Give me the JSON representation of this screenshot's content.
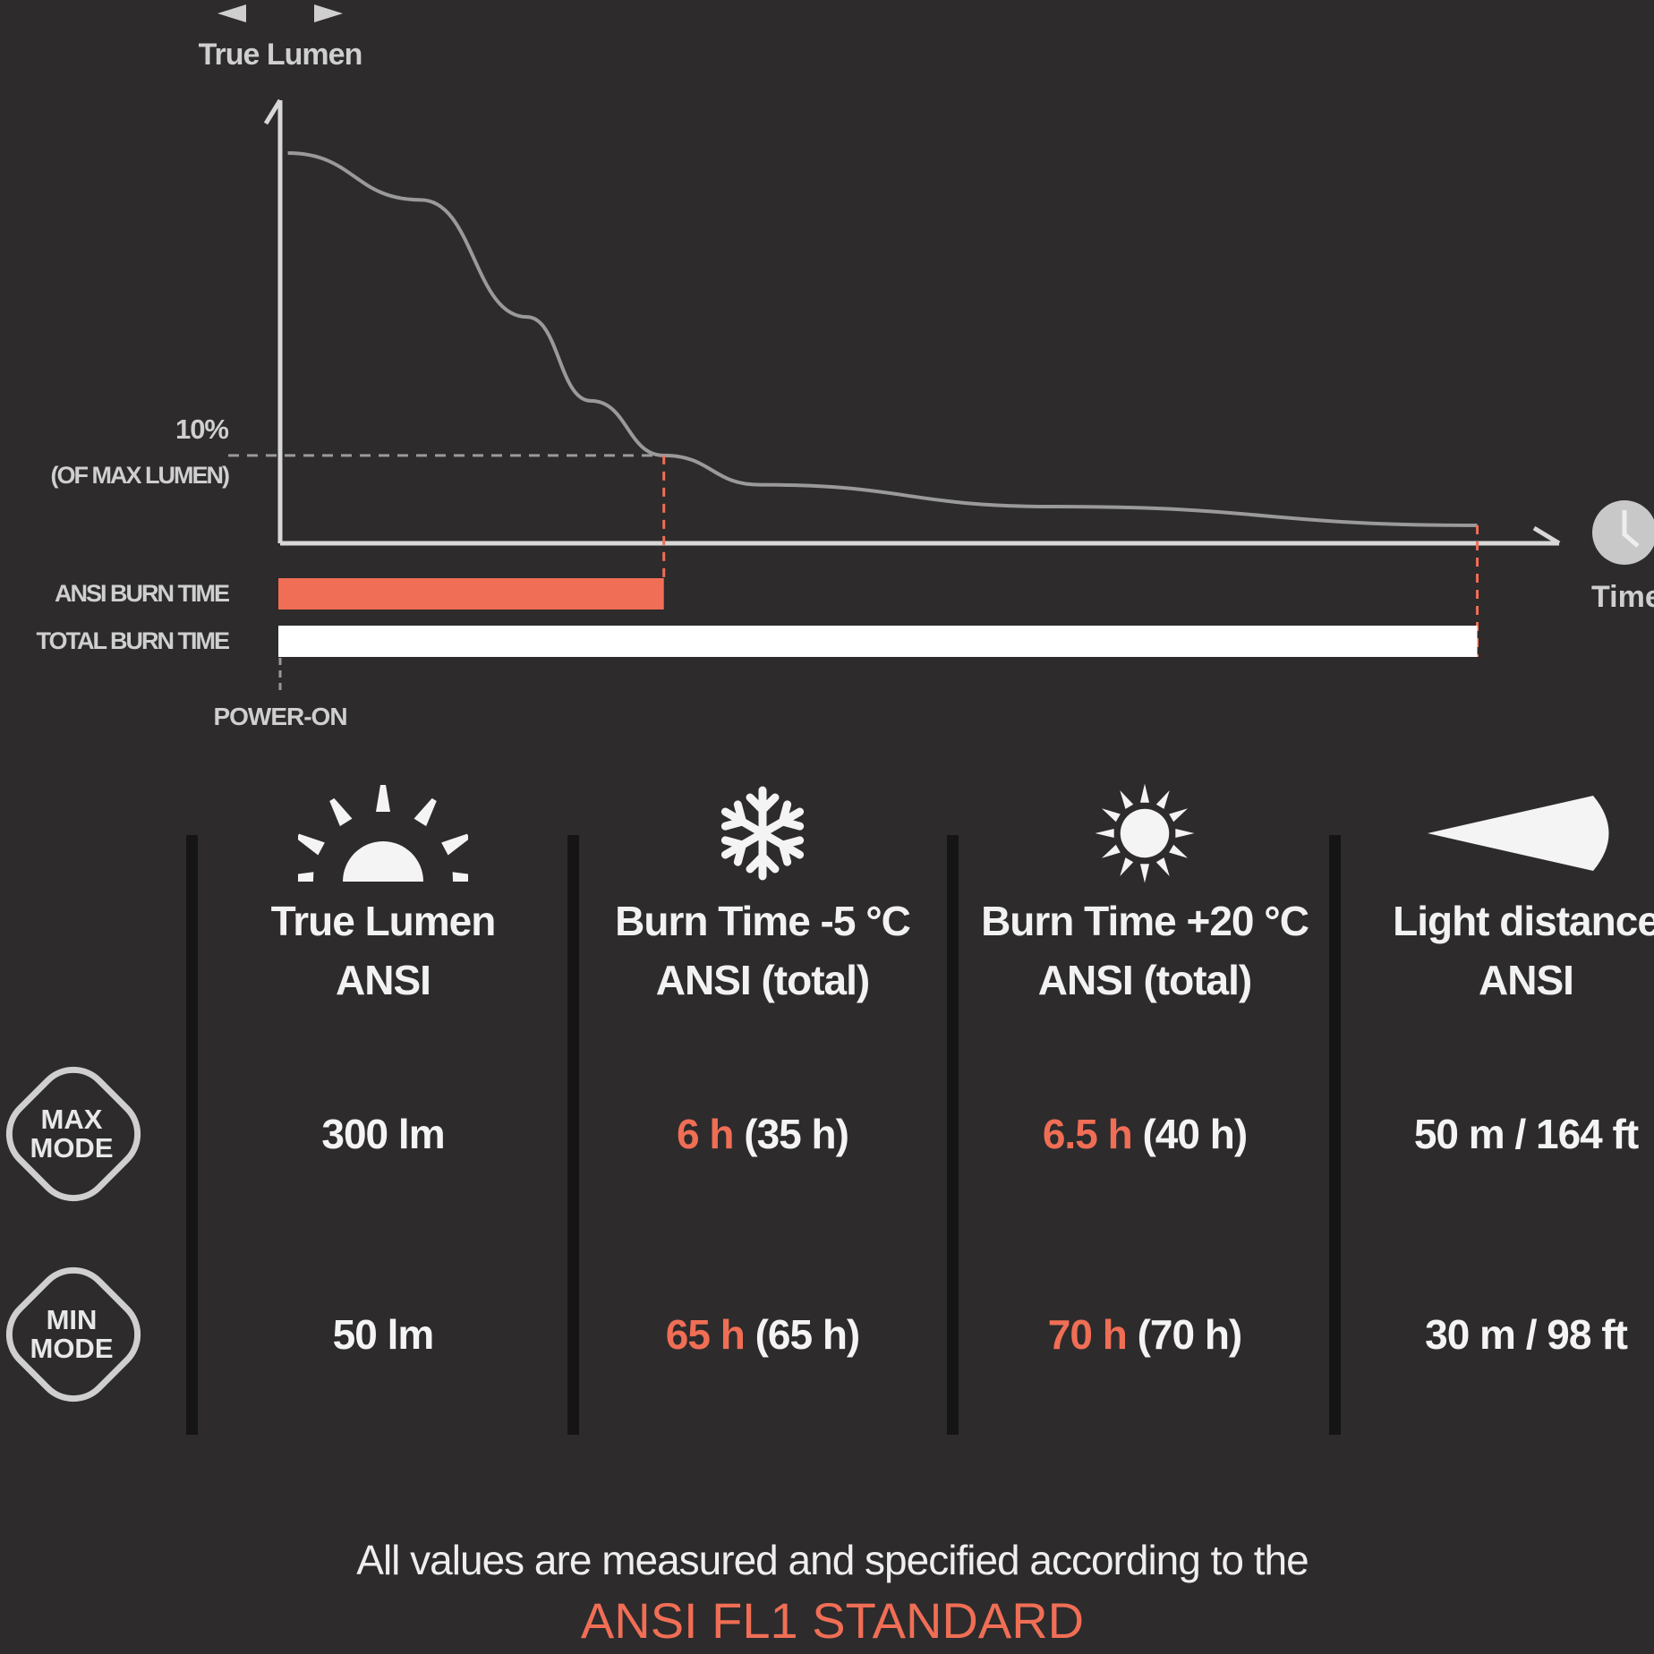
{
  "colors": {
    "background": "#2d2b2c",
    "accent": "#f06e55",
    "curve": "#9a9a9a",
    "axis": "#d8d8d8",
    "total_bar": "#ffffff"
  },
  "chart_data": {
    "type": "line",
    "ylabel": "True Lumen",
    "xlabel": "Time",
    "threshold": {
      "label": "10%",
      "sublabel": "(OF MAX LUMEN)",
      "y": 22.5
    },
    "curve": {
      "x": [
        0.6,
        11,
        19.3,
        24.3,
        30,
        37.5,
        60.6,
        93.6
      ],
      "y": [
        100,
        88,
        58,
        36.5,
        22.5,
        15,
        9.4,
        4.6
      ]
    },
    "bars": [
      {
        "label": "ANSI BURN TIME",
        "end": 30,
        "color": "#f06e55"
      },
      {
        "label": "TOTAL BURN TIME",
        "end": 93.6,
        "color": "#ffffff"
      }
    ],
    "origin_label": "POWER-ON",
    "icons": {
      "x_axis": "clock-icon",
      "y_axis": "light-rays-icon"
    }
  },
  "table": {
    "columns": [
      {
        "icon": "sunrise-icon",
        "line1": "True Lumen",
        "line2": "ANSI"
      },
      {
        "icon": "snowflake-icon",
        "line1": "Burn Time -5 °C",
        "line2": "ANSI  (total)"
      },
      {
        "icon": "sun-icon",
        "line1": "Burn Time +20 °C",
        "line2": "ANSI  (total)"
      },
      {
        "icon": "beam-icon",
        "line1": "Light distance",
        "line2": "ANSI"
      }
    ],
    "rows": [
      {
        "mode_line1": "MAX",
        "mode_line2": "MODE",
        "lumen": "300 lm",
        "cold_ansi": "6 h",
        "cold_total": "(35 h)",
        "warm_ansi": "6.5 h",
        "warm_total": "(40 h)",
        "distance": "50 m / 164 ft"
      },
      {
        "mode_line1": "MIN",
        "mode_line2": "MODE",
        "lumen": "50 lm",
        "cold_ansi": "65 h",
        "cold_total": "(65 h)",
        "warm_ansi": "70 h",
        "warm_total": "(70 h)",
        "distance": "30 m / 98 ft"
      }
    ]
  },
  "footer": {
    "line1": "All values are measured and specified according to the",
    "line2": "ANSI FL1 STANDARD"
  }
}
